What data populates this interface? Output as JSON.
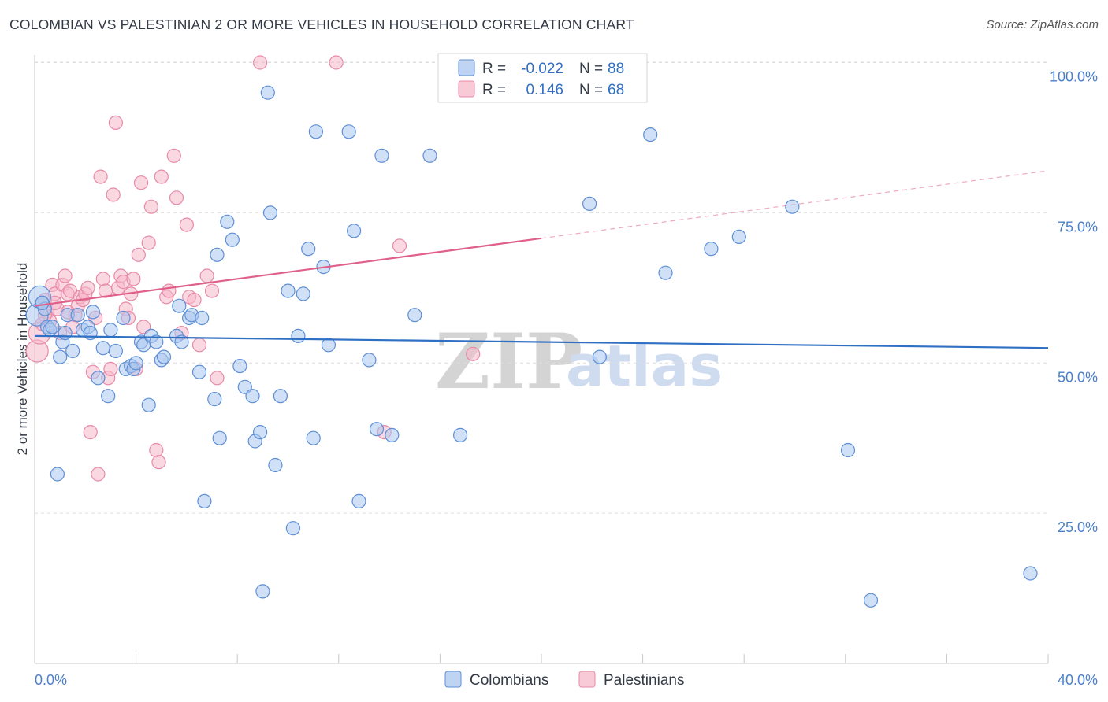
{
  "title": "COLOMBIAN VS PALESTINIAN 2 OR MORE VEHICLES IN HOUSEHOLD CORRELATION CHART",
  "source": "Source: ZipAtlas.com",
  "colors": {
    "blue_fill": "#a9c6ef",
    "blue_stroke": "#5e8fd6",
    "blue_line": "#2f6fc4",
    "pink_fill": "#f5b8cb",
    "pink_stroke": "#e88aa8",
    "pink_line": "#e0608c",
    "tick_color": "#4a7fcc"
  },
  "watermark": {
    "part1": "ZIP",
    "part2": "atlas"
  },
  "legend": {
    "r_label": "R =",
    "n_label": "N =",
    "rows": [
      {
        "r": "-0.022",
        "n": "88"
      },
      {
        "r": "0.146",
        "n": "68"
      }
    ]
  },
  "chart_data": {
    "type": "scatter",
    "title": "COLOMBIAN VS PALESTINIAN 2 OR MORE VEHICLES IN HOUSEHOLD CORRELATION CHART",
    "xlabel": "",
    "ylabel": "2 or more Vehicles in Household",
    "xlim": [
      0,
      40
    ],
    "ylim": [
      0,
      105
    ],
    "x_tick_labels": [
      "0.0%",
      "40.0%"
    ],
    "y_ticks": [
      25,
      50,
      75,
      100
    ],
    "y_tick_labels": [
      "25.0%",
      "50.0%",
      "75.0%",
      "100.0%"
    ],
    "grid": true,
    "legend": [
      "Colombians",
      "Palestinians"
    ],
    "series": [
      {
        "name": "Colombians",
        "r": -0.022,
        "n": 88,
        "trend": {
          "x0": 0,
          "y0": 54.5,
          "x1": 40,
          "y1": 52.5,
          "solid_until": 40
        },
        "points": [
          [
            0.1,
            58.0
          ],
          [
            0.2,
            61.0
          ],
          [
            0.3,
            60.0
          ],
          [
            0.4,
            59.0
          ],
          [
            0.5,
            56.0
          ],
          [
            0.6,
            55.5
          ],
          [
            0.7,
            56.0
          ],
          [
            0.9,
            31.5
          ],
          [
            1.0,
            51.0
          ],
          [
            1.1,
            53.5
          ],
          [
            1.2,
            55.0
          ],
          [
            1.3,
            58.0
          ],
          [
            1.5,
            52.0
          ],
          [
            1.7,
            58.0
          ],
          [
            1.9,
            55.5
          ],
          [
            2.1,
            56.0
          ],
          [
            2.2,
            55.0
          ],
          [
            2.3,
            58.5
          ],
          [
            2.5,
            47.5
          ],
          [
            2.7,
            52.5
          ],
          [
            2.9,
            44.5
          ],
          [
            3.0,
            55.5
          ],
          [
            3.2,
            52.0
          ],
          [
            3.5,
            57.5
          ],
          [
            3.6,
            49.0
          ],
          [
            3.8,
            49.5
          ],
          [
            3.9,
            49.0
          ],
          [
            4.0,
            50.0
          ],
          [
            4.2,
            53.5
          ],
          [
            4.3,
            53.0
          ],
          [
            4.5,
            43.0
          ],
          [
            4.6,
            54.5
          ],
          [
            4.8,
            53.5
          ],
          [
            5.0,
            50.5
          ],
          [
            5.1,
            51.0
          ],
          [
            5.6,
            54.5
          ],
          [
            5.8,
            53.5
          ],
          [
            5.7,
            59.5
          ],
          [
            6.1,
            57.5
          ],
          [
            6.2,
            58.0
          ],
          [
            6.6,
            57.5
          ],
          [
            6.5,
            48.5
          ],
          [
            6.7,
            27.0
          ],
          [
            7.1,
            44.0
          ],
          [
            7.3,
            37.5
          ],
          [
            7.2,
            68.0
          ],
          [
            7.6,
            73.5
          ],
          [
            7.8,
            70.5
          ],
          [
            8.1,
            49.5
          ],
          [
            8.3,
            46.0
          ],
          [
            8.6,
            44.5
          ],
          [
            8.7,
            37.0
          ],
          [
            8.9,
            38.5
          ],
          [
            9.0,
            12.0
          ],
          [
            9.2,
            95.0
          ],
          [
            9.3,
            75.0
          ],
          [
            9.5,
            33.0
          ],
          [
            9.7,
            44.5
          ],
          [
            10.0,
            62.0
          ],
          [
            10.2,
            22.5
          ],
          [
            10.4,
            54.5
          ],
          [
            10.6,
            61.5
          ],
          [
            10.8,
            69.0
          ],
          [
            11.0,
            37.5
          ],
          [
            11.1,
            88.5
          ],
          [
            11.4,
            66.0
          ],
          [
            11.6,
            53.0
          ],
          [
            12.4,
            88.5
          ],
          [
            12.6,
            72.0
          ],
          [
            12.8,
            27.0
          ],
          [
            13.2,
            50.5
          ],
          [
            13.5,
            39.0
          ],
          [
            13.7,
            84.5
          ],
          [
            14.1,
            38.0
          ],
          [
            15.0,
            58.0
          ],
          [
            15.6,
            84.5
          ],
          [
            16.8,
            38.0
          ],
          [
            21.9,
            76.5
          ],
          [
            22.3,
            51.0
          ],
          [
            24.3,
            88.0
          ],
          [
            24.9,
            65.0
          ],
          [
            26.7,
            69.0
          ],
          [
            27.8,
            71.0
          ],
          [
            29.9,
            76.0
          ],
          [
            32.1,
            35.5
          ],
          [
            33.0,
            10.5
          ],
          [
            39.3,
            15.0
          ],
          [
            0.3,
            60.0
          ]
        ]
      },
      {
        "name": "Palestinians",
        "r": 0.146,
        "n": 68,
        "trend": {
          "x0": 0,
          "y0": 59.5,
          "x1": 40,
          "y1": 82.0,
          "solid_until": 20
        },
        "points": [
          [
            0.1,
            52.0
          ],
          [
            0.2,
            55.0
          ],
          [
            0.3,
            56.5
          ],
          [
            0.4,
            60.5
          ],
          [
            0.5,
            58.5
          ],
          [
            0.6,
            57.0
          ],
          [
            0.7,
            63.0
          ],
          [
            0.8,
            61.5
          ],
          [
            0.9,
            59.0
          ],
          [
            1.0,
            55.0
          ],
          [
            1.1,
            63.0
          ],
          [
            1.2,
            64.5
          ],
          [
            1.3,
            61.5
          ],
          [
            1.4,
            62.0
          ],
          [
            1.5,
            56.0
          ],
          [
            1.6,
            58.0
          ],
          [
            1.7,
            59.5
          ],
          [
            1.8,
            61.0
          ],
          [
            1.9,
            60.5
          ],
          [
            2.0,
            61.5
          ],
          [
            2.1,
            62.5
          ],
          [
            2.2,
            38.5
          ],
          [
            2.3,
            48.5
          ],
          [
            2.4,
            57.5
          ],
          [
            2.5,
            31.5
          ],
          [
            2.6,
            81.0
          ],
          [
            2.7,
            64.0
          ],
          [
            2.8,
            62.0
          ],
          [
            2.9,
            47.5
          ],
          [
            3.0,
            49.0
          ],
          [
            3.1,
            78.0
          ],
          [
            3.2,
            90.0
          ],
          [
            3.3,
            62.5
          ],
          [
            3.4,
            64.5
          ],
          [
            3.5,
            63.5
          ],
          [
            3.6,
            59.0
          ],
          [
            3.7,
            57.5
          ],
          [
            3.8,
            61.5
          ],
          [
            3.9,
            64.0
          ],
          [
            4.0,
            49.0
          ],
          [
            4.1,
            68.0
          ],
          [
            4.2,
            80.0
          ],
          [
            4.3,
            56.0
          ],
          [
            4.5,
            70.0
          ],
          [
            4.6,
            76.0
          ],
          [
            4.8,
            35.5
          ],
          [
            4.9,
            33.5
          ],
          [
            5.0,
            81.0
          ],
          [
            5.2,
            61.0
          ],
          [
            5.3,
            62.0
          ],
          [
            5.5,
            84.5
          ],
          [
            5.6,
            77.5
          ],
          [
            5.8,
            55.0
          ],
          [
            6.0,
            73.0
          ],
          [
            6.1,
            61.0
          ],
          [
            6.3,
            60.5
          ],
          [
            6.5,
            53.0
          ],
          [
            6.8,
            64.5
          ],
          [
            7.0,
            62.0
          ],
          [
            7.2,
            47.5
          ],
          [
            8.9,
            100.0
          ],
          [
            11.9,
            100.0
          ],
          [
            13.8,
            38.5
          ],
          [
            14.4,
            69.5
          ],
          [
            17.3,
            51.5
          ],
          [
            1.3,
            58.5
          ],
          [
            0.4,
            58.0
          ],
          [
            0.8,
            60.0
          ]
        ]
      }
    ]
  }
}
